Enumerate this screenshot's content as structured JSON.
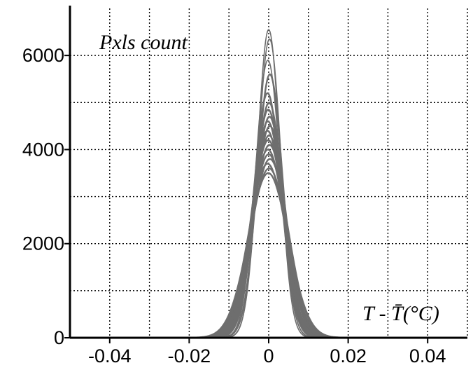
{
  "chart_data": {
    "type": "line",
    "title": "",
    "ylabel": "Pxls count",
    "xlabel": "T - T̄(°C)",
    "xlim": [
      -0.05,
      0.05
    ],
    "ylim": [
      0,
      7000
    ],
    "grid": true,
    "x_ticks": [
      -0.04,
      -0.02,
      0,
      0.02,
      0.04
    ],
    "x_tick_labels": [
      "-0.04",
      "-0.02",
      "0",
      "0.02",
      "0.04"
    ],
    "y_ticks": [
      0,
      2000,
      4000,
      6000
    ],
    "y_tick_labels": [
      "0",
      "2000",
      "4000",
      "6000"
    ],
    "colors": {
      "curves": "#6e6e6e",
      "grid": "#000000",
      "axes": "#000000"
    },
    "series": [
      {
        "peak": 6550,
        "sigma": 0.0028,
        "center": 0.0
      },
      {
        "peak": 6350,
        "sigma": 0.0029,
        "center": 0.0002
      },
      {
        "peak": 5900,
        "sigma": 0.0031,
        "center": -0.0002
      },
      {
        "peak": 5600,
        "sigma": 0.0032,
        "center": 0.0003
      },
      {
        "peak": 5200,
        "sigma": 0.0034,
        "center": -0.0003
      },
      {
        "peak": 5000,
        "sigma": 0.0035,
        "center": 0.0001
      },
      {
        "peak": 4850,
        "sigma": 0.0036,
        "center": -0.0001
      },
      {
        "peak": 4700,
        "sigma": 0.0037,
        "center": 0.0002
      },
      {
        "peak": 4600,
        "sigma": 0.0038,
        "center": -0.0002
      },
      {
        "peak": 4500,
        "sigma": 0.0039,
        "center": 0.0003
      },
      {
        "peak": 4400,
        "sigma": 0.004,
        "center": -0.0003
      },
      {
        "peak": 4300,
        "sigma": 0.0041,
        "center": 0.0001
      },
      {
        "peak": 4200,
        "sigma": 0.0042,
        "center": -0.0001
      },
      {
        "peak": 4100,
        "sigma": 0.0043,
        "center": 0.0002
      },
      {
        "peak": 4000,
        "sigma": 0.0044,
        "center": -0.0002
      },
      {
        "peak": 3900,
        "sigma": 0.0045,
        "center": 0.0
      },
      {
        "peak": 3800,
        "sigma": 0.0046,
        "center": 0.0003
      },
      {
        "peak": 3700,
        "sigma": 0.0047,
        "center": -0.0003
      },
      {
        "peak": 3600,
        "sigma": 0.0048,
        "center": 0.0001
      },
      {
        "peak": 3500,
        "sigma": 0.005,
        "center": -0.0001
      }
    ]
  }
}
